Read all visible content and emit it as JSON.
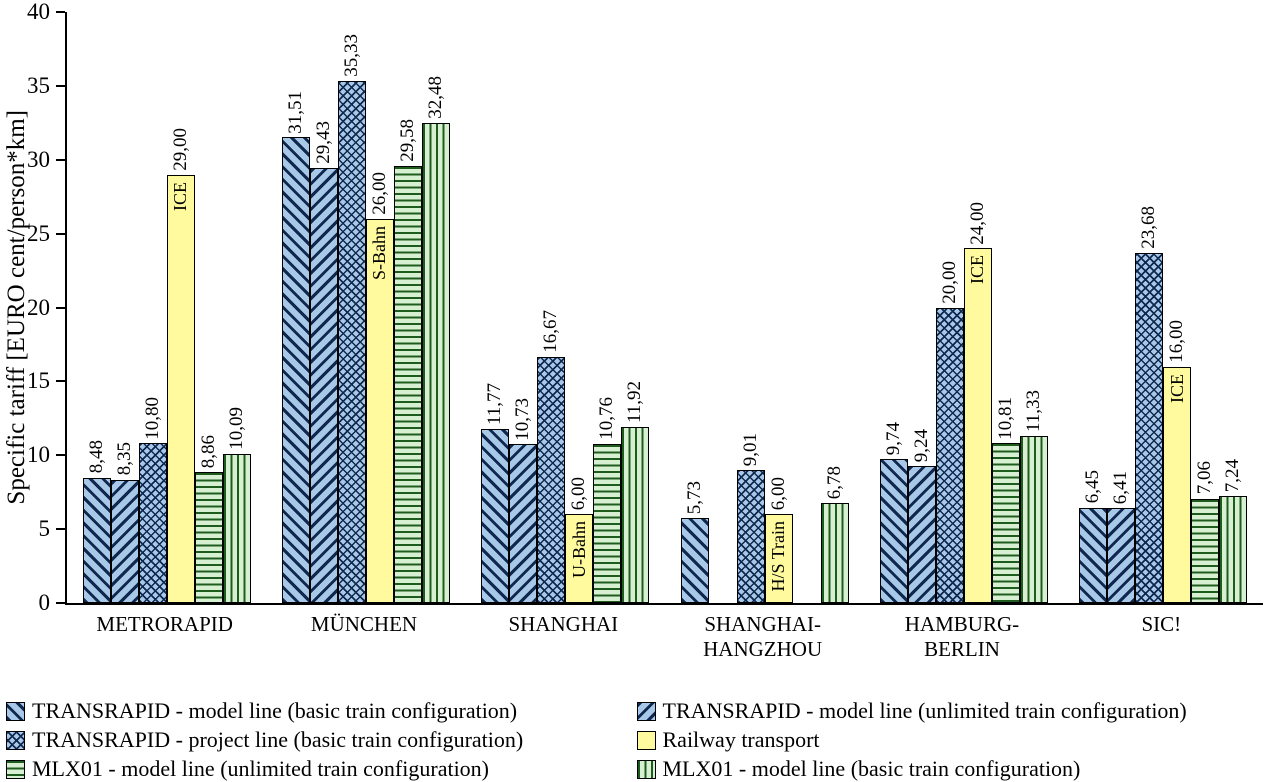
{
  "chart_data": {
    "type": "bar",
    "title": "",
    "ylabel": "Specific tariff [EURO cent/person*km]",
    "ylim": [
      0,
      40
    ],
    "ytick_step": 5,
    "grid": false,
    "legend_position": "bottom",
    "categories": [
      {
        "lines": [
          "METRORAPID"
        ]
      },
      {
        "lines": [
          "MÜNCHEN"
        ]
      },
      {
        "lines": [
          "SHANGHAI"
        ]
      },
      {
        "lines": [
          "SHANGHAI-",
          "HANGZHOU"
        ]
      },
      {
        "lines": [
          "HAMBURG-",
          "BERLIN"
        ]
      },
      {
        "lines": [
          "SIC!"
        ]
      }
    ],
    "series": [
      {
        "name": "TRANSRAPID - model line (basic train  configuration)",
        "pattern": "diag-down",
        "values": [
          8.48,
          31.51,
          11.77,
          5.73,
          9.74,
          6.45
        ],
        "labels": [
          "8,48",
          "31,51",
          "11,77",
          "5,73",
          "9,74",
          "6,45"
        ]
      },
      {
        "name": "TRANSRAPID - model line (unlimited train configuration)",
        "pattern": "diag-up",
        "values": [
          8.35,
          29.43,
          10.73,
          null,
          9.24,
          6.41
        ],
        "labels": [
          "8,35",
          "29,43",
          "10,73",
          null,
          "9,24",
          "6,41"
        ]
      },
      {
        "name": "TRANSRAPID - project line (basic train configuration)",
        "pattern": "crosshatch",
        "values": [
          10.8,
          35.33,
          16.67,
          9.01,
          20.0,
          23.68
        ],
        "labels": [
          "10,80",
          "35,33",
          "16,67",
          "9,01",
          "20,00",
          "23,68"
        ]
      },
      {
        "name": "Railway transport",
        "pattern": "solid-yellow",
        "values": [
          29.0,
          26.0,
          6.0,
          6.0,
          24.0,
          16.0
        ],
        "labels": [
          "29,00",
          "26,00",
          "6,00",
          "6,00",
          "24,00",
          "16,00"
        ],
        "bar_labels": [
          "ICE",
          "S-Bahn",
          "U-Bahn",
          "H/S Train",
          "ICE",
          "ICE"
        ]
      },
      {
        "name": "MLX01 - model line (unlimited train configuration)",
        "pattern": "hlines",
        "values": [
          8.86,
          29.58,
          10.76,
          null,
          10.81,
          7.06
        ],
        "labels": [
          "8,86",
          "29,58",
          "10,76",
          null,
          "10,81",
          "7,06"
        ]
      },
      {
        "name": "MLX01 - model line (basic train configuration)",
        "pattern": "vlines",
        "values": [
          10.09,
          32.48,
          11.92,
          6.78,
          11.33,
          7.24
        ],
        "labels": [
          "10,09",
          "32,48",
          "11,92",
          "6,78",
          "11,33",
          "7,24"
        ]
      }
    ],
    "legend_columns": [
      [
        0,
        2,
        4
      ],
      [
        1,
        3,
        5
      ]
    ],
    "colors": {
      "blue_fill": "#a8c8e8",
      "hatch_dark": "#10274f",
      "yellow_fill": "#fffa9d",
      "green_fill": "#d8f0d2",
      "green_line": "#1e5c1e",
      "axis": "#000000"
    }
  }
}
